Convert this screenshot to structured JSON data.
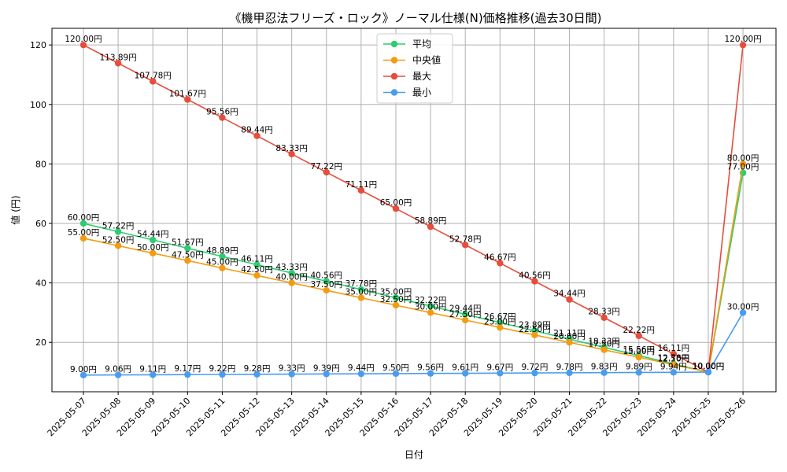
{
  "chart_data": {
    "type": "line",
    "title": "《機甲忍法フリーズ・ロック》ノーマル仕様(N)価格推移(過去30日間)",
    "xlabel": "日付",
    "ylabel": "値 (円)",
    "ylim": [
      3.4,
      125.6
    ],
    "yticks": [
      20,
      40,
      60,
      80,
      100,
      120
    ],
    "grid": true,
    "legend_position": "top-center",
    "value_suffix": "円",
    "categories": [
      "2025-05-07",
      "2025-05-08",
      "2025-05-09",
      "2025-05-10",
      "2025-05-11",
      "2025-05-12",
      "2025-05-13",
      "2025-05-14",
      "2025-05-15",
      "2025-05-16",
      "2025-05-17",
      "2025-05-18",
      "2025-05-19",
      "2025-05-20",
      "2025-05-21",
      "2025-05-22",
      "2025-05-23",
      "2025-05-24",
      "2025-05-25",
      "2025-05-26"
    ],
    "series": [
      {
        "name": "平均",
        "color": "#2ecc71",
        "values": [
          60.0,
          57.22,
          54.44,
          51.67,
          48.89,
          46.11,
          43.33,
          40.56,
          37.78,
          35.0,
          32.22,
          29.44,
          26.67,
          23.89,
          21.11,
          18.33,
          15.56,
          12.78,
          10.0,
          77.0
        ]
      },
      {
        "name": "中央値",
        "color": "#f39c12",
        "values": [
          55.0,
          52.5,
          50.0,
          47.5,
          45.0,
          42.5,
          40.0,
          37.5,
          35.0,
          32.5,
          30.0,
          27.5,
          25.0,
          22.5,
          20.0,
          17.5,
          15.0,
          12.5,
          10.0,
          80.0
        ]
      },
      {
        "name": "最大",
        "color": "#e74c3c",
        "values": [
          120.0,
          113.89,
          107.78,
          101.67,
          95.56,
          89.44,
          83.33,
          77.22,
          71.11,
          65.0,
          58.89,
          52.78,
          46.67,
          40.56,
          34.44,
          28.33,
          22.22,
          16.11,
          10.0,
          120.0
        ]
      },
      {
        "name": "最小",
        "color": "#4a9cf0",
        "values": [
          9.0,
          9.06,
          9.11,
          9.17,
          9.22,
          9.28,
          9.33,
          9.39,
          9.44,
          9.5,
          9.56,
          9.61,
          9.67,
          9.72,
          9.78,
          9.83,
          9.89,
          9.94,
          10.0,
          30.0
        ]
      }
    ]
  }
}
